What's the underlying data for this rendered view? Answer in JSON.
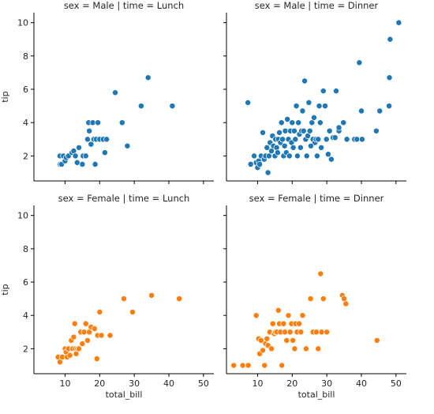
{
  "chart_data": {
    "type": "scatter",
    "facet_layout": {
      "rows": "sex",
      "cols": "time"
    },
    "x_ticks": [
      10,
      20,
      30,
      40,
      50
    ],
    "y_ticks": [
      2,
      4,
      6,
      8,
      10
    ],
    "xlim": [
      1,
      53
    ],
    "ylim": [
      0.5,
      10.6
    ],
    "colors": {
      "Male": "#1f77b4",
      "Female": "#ff7f0e"
    },
    "panels": [
      {
        "title": "sex = Male | time = Lunch",
        "row": 0,
        "col": 0,
        "xlabel": "",
        "ylabel": "tip",
        "color_key": "Male",
        "points": [
          [
            8.6,
            1.5
          ],
          [
            8.5,
            2.0
          ],
          [
            9.0,
            1.5
          ],
          [
            9.5,
            2.0
          ],
          [
            10.0,
            1.7
          ],
          [
            10.3,
            1.9
          ],
          [
            11.0,
            2.0
          ],
          [
            12.0,
            2.2
          ],
          [
            12.5,
            2.3
          ],
          [
            13.0,
            2.0
          ],
          [
            13.5,
            1.6
          ],
          [
            14.0,
            2.5
          ],
          [
            15.0,
            1.5
          ],
          [
            15.2,
            2.0
          ],
          [
            16.0,
            2.0
          ],
          [
            16.5,
            3.0
          ],
          [
            16.8,
            4.0
          ],
          [
            17.0,
            3.5
          ],
          [
            17.5,
            2.7
          ],
          [
            18.0,
            4.0
          ],
          [
            18.3,
            3.0
          ],
          [
            18.7,
            1.5
          ],
          [
            19.0,
            3.0
          ],
          [
            19.5,
            4.0
          ],
          [
            20.0,
            3.0
          ],
          [
            21.0,
            3.0
          ],
          [
            21.5,
            2.2
          ],
          [
            22.0,
            3.0
          ],
          [
            24.5,
            5.8
          ],
          [
            26.5,
            4.0
          ],
          [
            28.0,
            2.6
          ],
          [
            32.0,
            5.0
          ],
          [
            34.0,
            6.7
          ],
          [
            41.0,
            5.0
          ]
        ]
      },
      {
        "title": "sex = Male | time = Dinner",
        "row": 0,
        "col": 1,
        "xlabel": "",
        "ylabel": "",
        "color_key": "Male",
        "points": [
          [
            7.2,
            5.2
          ],
          [
            8.0,
            1.5
          ],
          [
            9.0,
            2.0
          ],
          [
            9.6,
            1.6
          ],
          [
            10.0,
            1.3
          ],
          [
            10.3,
            1.7
          ],
          [
            10.6,
            1.5
          ],
          [
            11.0,
            2.0
          ],
          [
            11.5,
            3.4
          ],
          [
            11.9,
            1.8
          ],
          [
            12.3,
            2.0
          ],
          [
            12.7,
            2.5
          ],
          [
            13.0,
            1.0
          ],
          [
            13.3,
            2.0
          ],
          [
            13.6,
            2.8
          ],
          [
            14.0,
            2.3
          ],
          [
            14.3,
            3.2
          ],
          [
            14.6,
            2.6
          ],
          [
            15.0,
            2.0
          ],
          [
            15.2,
            3.0
          ],
          [
            15.5,
            2.5
          ],
          [
            15.8,
            2.2
          ],
          [
            16.0,
            3.0
          ],
          [
            16.3,
            3.4
          ],
          [
            16.6,
            2.8
          ],
          [
            16.9,
            4.0
          ],
          [
            17.2,
            3.0
          ],
          [
            17.5,
            2.0
          ],
          [
            17.8,
            2.6
          ],
          [
            18.0,
            3.5
          ],
          [
            18.3,
            2.2
          ],
          [
            18.6,
            4.2
          ],
          [
            18.9,
            3.0
          ],
          [
            19.2,
            2.0
          ],
          [
            19.5,
            3.5
          ],
          [
            19.8,
            2.8
          ],
          [
            20.0,
            4.0
          ],
          [
            20.3,
            2.5
          ],
          [
            20.6,
            3.5
          ],
          [
            20.9,
            3.0
          ],
          [
            21.2,
            5.0
          ],
          [
            21.5,
            2.0
          ],
          [
            21.8,
            4.0
          ],
          [
            22.1,
            3.3
          ],
          [
            22.4,
            2.5
          ],
          [
            22.7,
            3.5
          ],
          [
            23.0,
            4.7
          ],
          [
            23.3,
            3.5
          ],
          [
            23.6,
            6.5
          ],
          [
            23.9,
            3.0
          ],
          [
            24.2,
            2.0
          ],
          [
            24.5,
            3.2
          ],
          [
            24.8,
            5.2
          ],
          [
            25.1,
            3.5
          ],
          [
            25.4,
            2.6
          ],
          [
            25.7,
            4.0
          ],
          [
            26.0,
            3.0
          ],
          [
            26.3,
            4.3
          ],
          [
            26.6,
            2.8
          ],
          [
            26.9,
            3.0
          ],
          [
            27.2,
            2.0
          ],
          [
            27.5,
            3.0
          ],
          [
            27.8,
            5.0
          ],
          [
            28.1,
            4.0
          ],
          [
            28.4,
            2.5
          ],
          [
            29.0,
            5.9
          ],
          [
            29.5,
            5.0
          ],
          [
            29.9,
            3.0
          ],
          [
            30.4,
            2.1
          ],
          [
            30.8,
            3.5
          ],
          [
            31.3,
            1.8
          ],
          [
            31.8,
            3.1
          ],
          [
            32.4,
            3.1
          ],
          [
            32.7,
            5.9
          ],
          [
            33.5,
            3.5
          ],
          [
            33.5,
            3.7
          ],
          [
            34.8,
            4.0
          ],
          [
            35.8,
            3.0
          ],
          [
            38.0,
            3.0
          ],
          [
            38.7,
            3.0
          ],
          [
            39.4,
            7.6
          ],
          [
            40.0,
            4.7
          ],
          [
            40.2,
            3.0
          ],
          [
            44.3,
            3.5
          ],
          [
            45.3,
            4.7
          ],
          [
            48.0,
            5.0
          ],
          [
            48.1,
            6.7
          ],
          [
            48.3,
            9.0
          ],
          [
            50.8,
            10.0
          ]
        ]
      },
      {
        "title": "sex = Female | time = Lunch",
        "row": 1,
        "col": 0,
        "xlabel": "total_bill",
        "ylabel": "tip",
        "color_key": "Female",
        "points": [
          [
            8.0,
            1.5
          ],
          [
            8.5,
            1.2
          ],
          [
            9.2,
            1.5
          ],
          [
            10.0,
            2.0
          ],
          [
            10.3,
            1.8
          ],
          [
            10.6,
            1.5
          ],
          [
            11.0,
            2.0
          ],
          [
            11.4,
            1.6
          ],
          [
            11.8,
            2.5
          ],
          [
            12.2,
            2.0
          ],
          [
            12.5,
            2.7
          ],
          [
            12.8,
            3.5
          ],
          [
            13.0,
            2.0
          ],
          [
            13.2,
            1.7
          ],
          [
            13.6,
            2.0
          ],
          [
            14.0,
            2.0
          ],
          [
            14.5,
            3.0
          ],
          [
            15.0,
            2.3
          ],
          [
            15.5,
            3.0
          ],
          [
            16.0,
            3.5
          ],
          [
            16.5,
            2.5
          ],
          [
            17.0,
            3.0
          ],
          [
            17.5,
            3.3
          ],
          [
            18.5,
            3.2
          ],
          [
            19.2,
            1.4
          ],
          [
            19.4,
            2.8
          ],
          [
            20.0,
            4.2
          ],
          [
            20.5,
            2.8
          ],
          [
            23.0,
            2.8
          ],
          [
            27.0,
            5.0
          ],
          [
            29.5,
            4.2
          ],
          [
            35.0,
            5.2
          ],
          [
            43.0,
            5.0
          ]
        ]
      },
      {
        "title": "sex = Female | time = Dinner",
        "row": 1,
        "col": 1,
        "xlabel": "total_bill",
        "ylabel": "",
        "color_key": "Female",
        "points": [
          [
            3.1,
            1.0
          ],
          [
            5.7,
            1.0
          ],
          [
            7.3,
            1.0
          ],
          [
            9.6,
            4.0
          ],
          [
            10.3,
            2.6
          ],
          [
            10.6,
            1.7
          ],
          [
            11.0,
            2.5
          ],
          [
            11.5,
            1.9
          ],
          [
            12.0,
            1.0
          ],
          [
            12.3,
            2.3
          ],
          [
            12.7,
            2.6
          ],
          [
            13.0,
            2.2
          ],
          [
            13.5,
            3.0
          ],
          [
            14.0,
            2.0
          ],
          [
            14.4,
            3.5
          ],
          [
            14.8,
            2.9
          ],
          [
            15.2,
            3.0
          ],
          [
            15.6,
            3.0
          ],
          [
            16.0,
            4.3
          ],
          [
            16.3,
            3.5
          ],
          [
            16.6,
            3.0
          ],
          [
            17.0,
            1.0
          ],
          [
            17.5,
            3.5
          ],
          [
            17.9,
            3.0
          ],
          [
            18.4,
            2.5
          ],
          [
            18.9,
            4.0
          ],
          [
            19.4,
            3.0
          ],
          [
            19.8,
            3.5
          ],
          [
            20.2,
            2.5
          ],
          [
            20.7,
            2.0
          ],
          [
            21.0,
            3.5
          ],
          [
            21.4,
            3.0
          ],
          [
            22.0,
            3.5
          ],
          [
            22.5,
            3.0
          ],
          [
            23.0,
            4.0
          ],
          [
            24.0,
            2.0
          ],
          [
            25.3,
            5.0
          ],
          [
            26.0,
            3.0
          ],
          [
            27.0,
            3.0
          ],
          [
            27.5,
            2.0
          ],
          [
            28.2,
            6.5
          ],
          [
            28.5,
            3.0
          ],
          [
            29.0,
            5.0
          ],
          [
            30.0,
            3.0
          ],
          [
            34.5,
            5.2
          ],
          [
            35.0,
            5.0
          ],
          [
            35.5,
            4.7
          ],
          [
            44.5,
            2.5
          ]
        ]
      }
    ]
  }
}
